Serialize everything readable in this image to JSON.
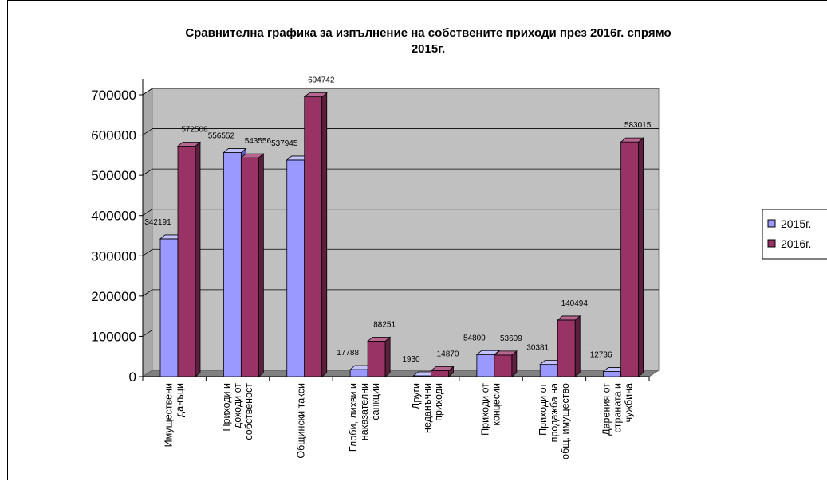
{
  "chart_data": {
    "type": "bar",
    "title_lines": [
      "Сравнителна графика за изпълнение на собствените приходи през 2016г. спрямо",
      "2015г."
    ],
    "categories": [
      [
        "Имуществени",
        "данъци"
      ],
      [
        "Приходи и",
        "доходи от",
        "собственост"
      ],
      [
        "Общински такси"
      ],
      [
        "Глоби, лихви и",
        "наказателни",
        "санкции"
      ],
      [
        "Други",
        "неданъчни",
        "приходи"
      ],
      [
        "Приходи от",
        "концесии"
      ],
      [
        "Приходи от",
        "продажба на",
        "общ. имущество"
      ],
      [
        "Дарения от",
        "страната и",
        "чужбина"
      ]
    ],
    "series": [
      {
        "name": "2015г.",
        "color": "#9999ff",
        "side": "#5c5cb8",
        "top": "#c2c2ff",
        "values": [
          342191,
          556552,
          537945,
          17788,
          1930,
          54809,
          30381,
          12736
        ]
      },
      {
        "name": "2016г.",
        "color": "#993366",
        "side": "#5c1f3d",
        "top": "#b8668f",
        "values": [
          572508,
          543556,
          694742,
          88251,
          14870,
          53609,
          140494,
          583015
        ]
      }
    ],
    "ylim": [
      0,
      700000
    ],
    "ytick_labels": [
      "0",
      "100000",
      "200000",
      "300000",
      "400000",
      "500000",
      "600000",
      "700000"
    ],
    "grid": true,
    "legend_position": "right"
  }
}
